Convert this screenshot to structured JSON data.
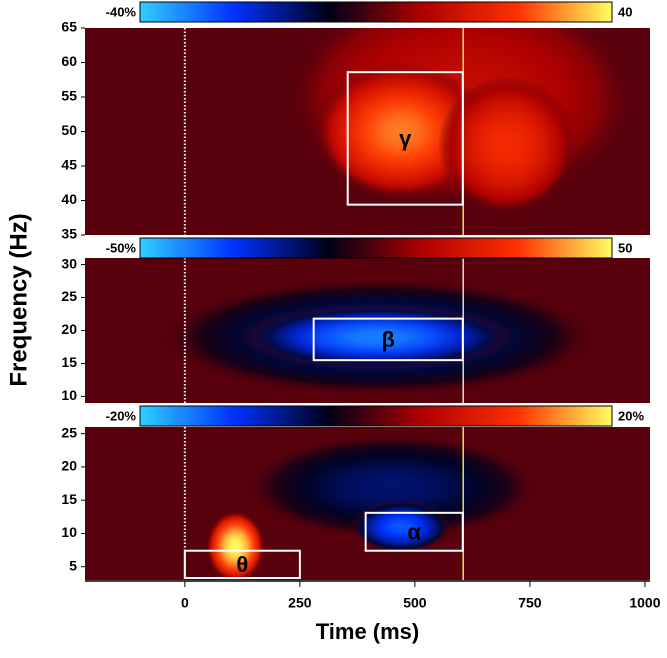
{
  "chart_data": [
    {
      "type": "heatmap",
      "xlim": [
        -217,
        1011
      ],
      "ylim": [
        35,
        65
      ],
      "yticks": [
        35,
        40,
        45,
        50,
        55,
        60,
        65
      ],
      "colormap": [
        "#2fd0ff",
        "#0030ff",
        "#000018",
        "#b00000",
        "#ff3000",
        "#ffff60"
      ],
      "clim": [
        {
          "value": -40,
          "label": "-40%"
        },
        {
          "value": 40,
          "label": "40"
        }
      ],
      "hotspots": [
        {
          "x": 600,
          "y": 55,
          "value": 12,
          "x_spread": 380,
          "y_spread": 16
        },
        {
          "x": 470,
          "y": 50,
          "value": 30,
          "x_spread": 190,
          "y_spread": 10
        },
        {
          "x": 700,
          "y": 48,
          "value": 22,
          "x_spread": 150,
          "y_spread": 10
        }
      ],
      "regions": [
        {
          "label": "γ",
          "x": [
            354,
            604
          ],
          "y": [
            39.4,
            58.6
          ]
        }
      ],
      "events": [
        {
          "x": 0,
          "color": "#ffffff",
          "style": "dotted"
        },
        {
          "x": 605,
          "color": "#e8e070",
          "style": "solid"
        }
      ]
    },
    {
      "type": "heatmap",
      "xlim": [
        -217,
        1011
      ],
      "ylim": [
        9,
        31
      ],
      "yticks": [
        10,
        15,
        20,
        25,
        30
      ],
      "ylabel": "Frequency (Hz)",
      "colormap": [
        "#2fd0ff",
        "#0030ff",
        "#000018",
        "#b00000",
        "#ff3000",
        "#ffff60"
      ],
      "clim": [
        {
          "value": -50,
          "label": "-50%"
        },
        {
          "value": 50,
          "label": "50"
        }
      ],
      "hotspots": [
        {
          "x": 420,
          "y": 19,
          "value": -20,
          "x_spread": 480,
          "y_spread": 9
        },
        {
          "x": 420,
          "y": 19,
          "value": -40,
          "x_spread": 300,
          "y_spread": 5
        }
      ],
      "regions": [
        {
          "label": "β",
          "x": [
            280,
            604
          ],
          "y": [
            15.5,
            21.8
          ]
        }
      ],
      "events": [
        {
          "x": 0,
          "color": "#ffffff",
          "style": "dotted"
        },
        {
          "x": 605,
          "color": "#e0e0e0",
          "style": "solid"
        }
      ]
    },
    {
      "type": "heatmap",
      "xlim": [
        -217,
        1011
      ],
      "ylim": [
        3,
        26
      ],
      "yticks": [
        5,
        10,
        15,
        20,
        25
      ],
      "xticks": [
        0,
        250,
        500,
        750,
        1000
      ],
      "xlabel": "Time (ms)",
      "colormap": [
        "#2fd0ff",
        "#0030ff",
        "#000018",
        "#b00000",
        "#ff3000",
        "#ffff60"
      ],
      "clim": [
        {
          "value": -20,
          "label": "-20%"
        },
        {
          "value": 20,
          "label": "20%"
        }
      ],
      "hotspots": [
        {
          "x": 450,
          "y": 17,
          "value": -7,
          "x_spread": 320,
          "y_spread": 8
        },
        {
          "x": 470,
          "y": 11,
          "value": -14,
          "x_spread": 110,
          "y_spread": 4
        },
        {
          "x": 110,
          "y": 8,
          "value": 20,
          "x_spread": 65,
          "y_spread": 5.5
        }
      ],
      "regions": [
        {
          "label": "α",
          "x": [
            393,
            604
          ],
          "y": [
            7.4,
            13.1
          ]
        },
        {
          "label": "θ",
          "x": [
            0,
            250
          ],
          "y": [
            3.3,
            7.4
          ]
        }
      ],
      "events": [
        {
          "x": 0,
          "color": "#ffffff",
          "style": "dotted"
        },
        {
          "x": 605,
          "color": "#e8e070",
          "style": "solid"
        }
      ]
    }
  ]
}
